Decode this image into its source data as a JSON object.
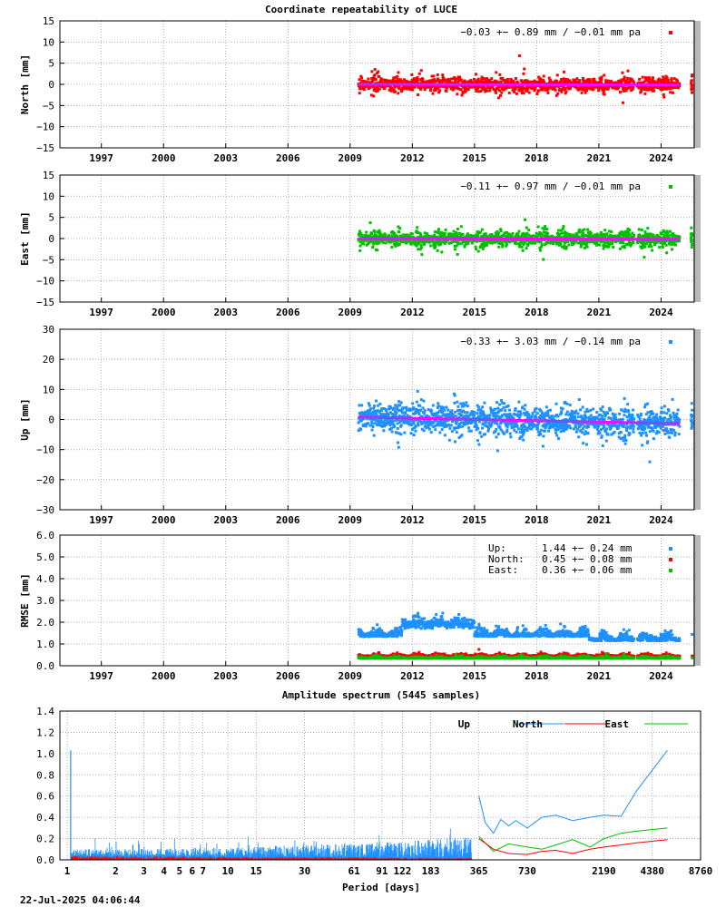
{
  "colors": {
    "north": "#ff0000",
    "east": "#00c000",
    "up": "#1e90ff",
    "trend": "#ff00ff",
    "trend_core": "#6060ff",
    "grid": "#a0a0a0",
    "axis": "#000000"
  },
  "chart_data": [
    {
      "type": "scatter",
      "id": "north",
      "title": "Coordinate repeatability of LUCE",
      "ylabel": "North [mm]",
      "xlim": [
        1995.0,
        2025.6
      ],
      "ylim": [
        -15,
        15
      ],
      "yticks": [
        -15,
        -10,
        -5,
        0,
        5,
        10,
        15
      ],
      "ytick_labels": [
        "−15",
        "−10",
        "−5",
        "0",
        "5",
        "10",
        "15"
      ],
      "xticks": [
        1997,
        2000,
        2003,
        2006,
        2009,
        2012,
        2015,
        2018,
        2021,
        2024
      ],
      "xtick_labels": [
        "1997",
        "2000",
        "2003",
        "2006",
        "2009",
        "2012",
        "2015",
        "2018",
        "2021",
        "2024"
      ],
      "data_range": [
        2009.4,
        2024.9
      ],
      "scatter_sd": 1.1,
      "trend": [
        [
          2009.4,
          0.0
        ],
        [
          2024.9,
          -0.15
        ]
      ],
      "stat_label": "−0.03 +− 0.89 mm / −0.01 mm pa"
    },
    {
      "type": "scatter",
      "id": "east",
      "ylabel": "East [mm]",
      "xlim": [
        1995.0,
        2025.6
      ],
      "ylim": [
        -15,
        15
      ],
      "yticks": [
        -15,
        -10,
        -5,
        0,
        5,
        10,
        15
      ],
      "ytick_labels": [
        "−15",
        "−10",
        "−5",
        "0",
        "5",
        "10",
        "15"
      ],
      "xticks": [
        1997,
        2000,
        2003,
        2006,
        2009,
        2012,
        2015,
        2018,
        2021,
        2024
      ],
      "xtick_labels": [
        "1997",
        "2000",
        "2003",
        "2006",
        "2009",
        "2012",
        "2015",
        "2018",
        "2021",
        "2024"
      ],
      "data_range": [
        2009.4,
        2024.9
      ],
      "scatter_sd": 1.2,
      "trend": [
        [
          2009.4,
          0.0
        ],
        [
          2024.9,
          -0.2
        ]
      ],
      "stat_label": "−0.11 +− 0.97 mm / −0.01 mm pa"
    },
    {
      "type": "scatter",
      "id": "up",
      "ylabel": "Up [mm]",
      "xlim": [
        1995.0,
        2025.6
      ],
      "ylim": [
        -30,
        30
      ],
      "yticks": [
        -30,
        -20,
        -10,
        0,
        10,
        20,
        30
      ],
      "ytick_labels": [
        "−30",
        "−20",
        "−10",
        "0",
        "10",
        "20",
        "30"
      ],
      "xticks": [
        1997,
        2000,
        2003,
        2006,
        2009,
        2012,
        2015,
        2018,
        2021,
        2024
      ],
      "xtick_labels": [
        "1997",
        "2000",
        "2003",
        "2006",
        "2009",
        "2012",
        "2015",
        "2018",
        "2021",
        "2024"
      ],
      "data_range": [
        2009.4,
        2024.9
      ],
      "scatter_sd": 3.3,
      "trend": [
        [
          2009.4,
          0.8
        ],
        [
          2024.9,
          -1.4
        ]
      ],
      "stat_label": "−0.33 +− 3.03 mm / −0.14 mm pa"
    },
    {
      "type": "scatter",
      "id": "rmse",
      "ylabel": "RMSE [mm]",
      "xlim": [
        1995.0,
        2025.6
      ],
      "ylim": [
        0,
        6
      ],
      "yticks": [
        0,
        1,
        2,
        3,
        4,
        5,
        6
      ],
      "ytick_labels": [
        "0.0",
        "1.0",
        "2.0",
        "3.0",
        "4.0",
        "5.0",
        "6.0"
      ],
      "xticks": [
        1997,
        2000,
        2003,
        2006,
        2009,
        2012,
        2015,
        2018,
        2021,
        2024
      ],
      "xtick_labels": [
        "1997",
        "2000",
        "2003",
        "2006",
        "2009",
        "2012",
        "2015",
        "2018",
        "2021",
        "2024"
      ],
      "data_range": [
        2009.4,
        2024.9
      ],
      "series": [
        {
          "name": "Up",
          "label": "Up:",
          "value": "1.44 +− 0.24 mm",
          "mean": 1.44,
          "sd": 0.24,
          "color_key": "up"
        },
        {
          "name": "North",
          "label": "North:",
          "value": "0.45 +− 0.08 mm",
          "mean": 0.45,
          "sd": 0.08,
          "color_key": "north"
        },
        {
          "name": "East",
          "label": "East:",
          "value": "0.36 +− 0.06 mm",
          "mean": 0.36,
          "sd": 0.06,
          "color_key": "east"
        }
      ]
    },
    {
      "type": "line",
      "id": "spectrum",
      "title": "Amplitude spectrum (5445 samples)",
      "xlabel": "Period [days]",
      "xscale": "log",
      "xlim": [
        0.9,
        8760
      ],
      "ylim": [
        0,
        1.4
      ],
      "yticks": [
        0,
        0.2,
        0.4,
        0.6,
        0.8,
        1.0,
        1.2,
        1.4
      ],
      "ytick_labels": [
        "0.0",
        "0.2",
        "0.4",
        "0.6",
        "0.8",
        "1.0",
        "1.2",
        "1.4"
      ],
      "xticks": [
        1,
        2,
        3,
        4,
        5,
        6,
        7,
        10,
        15,
        30,
        61,
        91,
        122,
        183,
        365,
        730,
        2190,
        4380,
        8760
      ],
      "xtick_labels": [
        "1",
        "2",
        "3",
        "4",
        "5",
        "6",
        "7",
        "10",
        "15",
        "30",
        "61",
        "91",
        "122",
        "183",
        "365",
        "730",
        "2190",
        "4380",
        "8760"
      ],
      "series": [
        {
          "name": "Up",
          "color_key": "up",
          "points": [
            [
              365,
              0.6
            ],
            [
              400,
              0.35
            ],
            [
              450,
              0.25
            ],
            [
              500,
              0.38
            ],
            [
              560,
              0.32
            ],
            [
              620,
              0.37
            ],
            [
              730,
              0.3
            ],
            [
              900,
              0.4
            ],
            [
              1100,
              0.42
            ],
            [
              1400,
              0.37
            ],
            [
              1800,
              0.4
            ],
            [
              2190,
              0.42
            ],
            [
              2800,
              0.41
            ],
            [
              3500,
              0.65
            ],
            [
              5445,
              1.03
            ]
          ]
        },
        {
          "name": "North",
          "color_key": "north",
          "points": [
            [
              365,
              0.2
            ],
            [
              450,
              0.1
            ],
            [
              560,
              0.06
            ],
            [
              730,
              0.05
            ],
            [
              900,
              0.08
            ],
            [
              1100,
              0.09
            ],
            [
              1400,
              0.06
            ],
            [
              1800,
              0.1
            ],
            [
              2190,
              0.12
            ],
            [
              2800,
              0.14
            ],
            [
              3500,
              0.16
            ],
            [
              5445,
              0.19
            ]
          ]
        },
        {
          "name": "East",
          "color_key": "east",
          "points": [
            [
              365,
              0.22
            ],
            [
              450,
              0.08
            ],
            [
              560,
              0.15
            ],
            [
              730,
              0.12
            ],
            [
              900,
              0.1
            ],
            [
              1100,
              0.14
            ],
            [
              1400,
              0.19
            ],
            [
              1800,
              0.12
            ],
            [
              2190,
              0.2
            ],
            [
              2800,
              0.25
            ],
            [
              3500,
              0.27
            ],
            [
              5445,
              0.3
            ]
          ]
        }
      ],
      "spike": [
        1.05,
        1.03
      ]
    }
  ],
  "footer": {
    "timestamp": "22-Jul-2025 04:06:44"
  }
}
